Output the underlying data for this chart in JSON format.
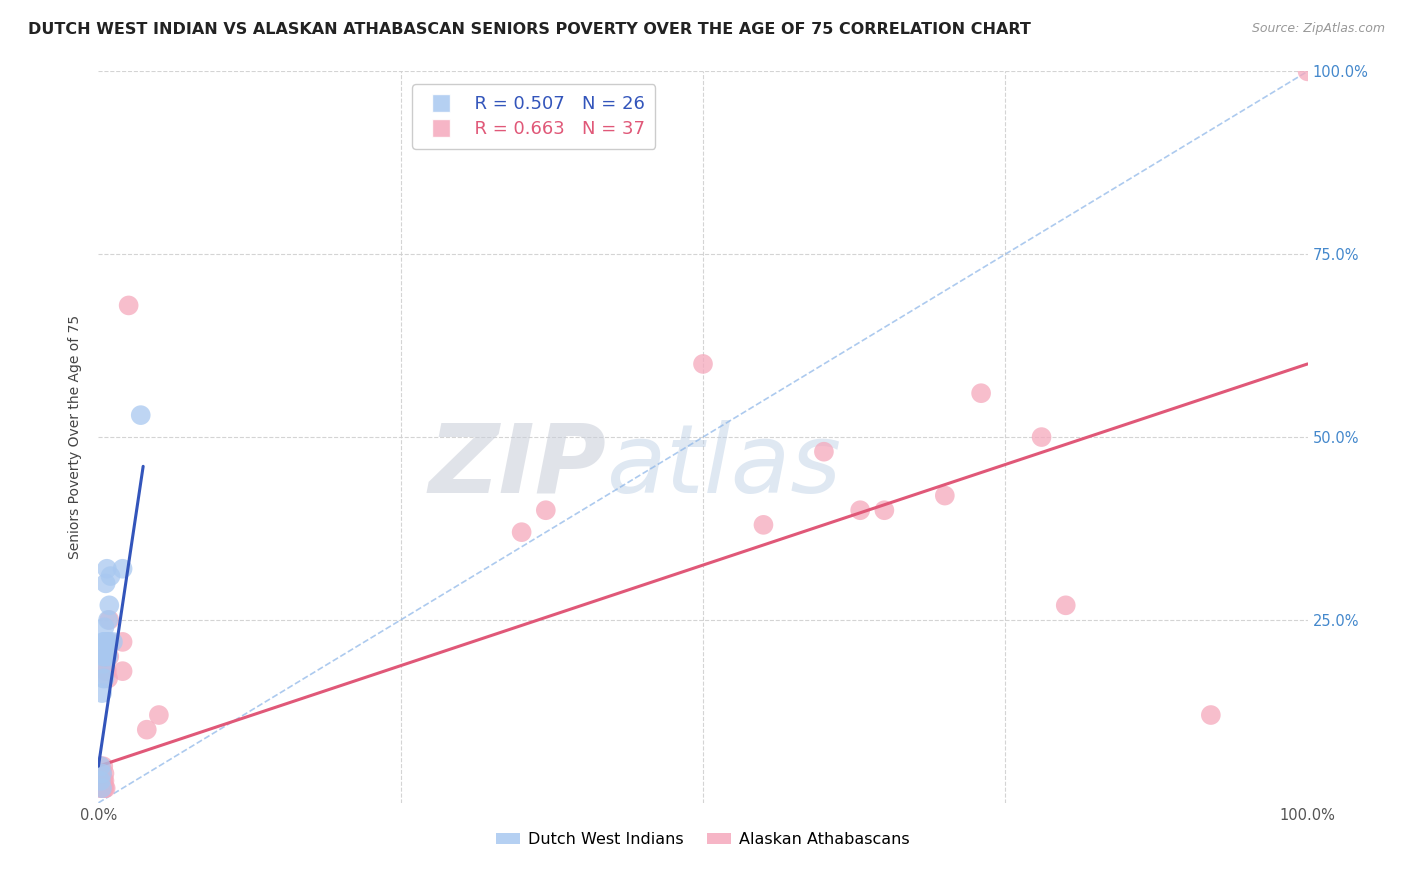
{
  "title": "DUTCH WEST INDIAN VS ALASKAN ATHABASCAN SENIORS POVERTY OVER THE AGE OF 75 CORRELATION CHART",
  "source": "Source: ZipAtlas.com",
  "ylabel": "Seniors Poverty Over the Age of 75",
  "xlim": [
    0,
    1
  ],
  "ylim": [
    0,
    1
  ],
  "blue_R": "0.507",
  "blue_N": "26",
  "pink_R": "0.663",
  "pink_N": "37",
  "blue_color": "#a8c8f0",
  "pink_color": "#f5a8bc",
  "blue_line_color": "#3355bb",
  "pink_line_color": "#e05878",
  "legend_label_blue": "Dutch West Indians",
  "legend_label_pink": "Alaskan Athabascans",
  "blue_points_x": [
    0.002,
    0.002,
    0.003,
    0.003,
    0.003,
    0.004,
    0.004,
    0.004,
    0.004,
    0.005,
    0.005,
    0.005,
    0.005,
    0.006,
    0.006,
    0.006,
    0.007,
    0.007,
    0.008,
    0.008,
    0.009,
    0.009,
    0.01,
    0.012,
    0.02,
    0.035
  ],
  "blue_points_y": [
    0.03,
    0.05,
    0.02,
    0.04,
    0.15,
    0.17,
    0.19,
    0.2,
    0.22,
    0.17,
    0.2,
    0.22,
    0.24,
    0.2,
    0.22,
    0.3,
    0.22,
    0.32,
    0.2,
    0.25,
    0.22,
    0.27,
    0.31,
    0.22,
    0.32,
    0.53
  ],
  "pink_points_x": [
    0.002,
    0.002,
    0.002,
    0.003,
    0.003,
    0.004,
    0.004,
    0.004,
    0.005,
    0.005,
    0.005,
    0.006,
    0.006,
    0.006,
    0.007,
    0.008,
    0.008,
    0.009,
    0.009,
    0.02,
    0.02,
    0.025,
    0.04,
    0.05,
    0.35,
    0.37,
    0.5,
    0.55,
    0.6,
    0.63,
    0.65,
    0.7,
    0.73,
    0.78,
    0.8,
    0.92,
    1.0
  ],
  "pink_points_y": [
    0.02,
    0.03,
    0.05,
    0.02,
    0.04,
    0.02,
    0.03,
    0.05,
    0.02,
    0.03,
    0.04,
    0.02,
    0.18,
    0.2,
    0.18,
    0.17,
    0.22,
    0.2,
    0.25,
    0.18,
    0.22,
    0.68,
    0.1,
    0.12,
    0.37,
    0.4,
    0.6,
    0.38,
    0.48,
    0.4,
    0.4,
    0.42,
    0.56,
    0.5,
    0.27,
    0.12,
    1.0
  ],
  "blue_line_x": [
    0.0,
    0.037
  ],
  "blue_line_y": [
    0.05,
    0.46
  ],
  "diag_line_x": [
    0.0,
    1.0
  ],
  "diag_line_y": [
    0.0,
    1.0
  ],
  "pink_line_x": [
    0.0,
    1.0
  ],
  "pink_line_y": [
    0.05,
    0.6
  ],
  "watermark_zip": "ZIP",
  "watermark_atlas": "atlas",
  "bg_color": "#ffffff",
  "grid_color": "#d0d0d0",
  "title_fontsize": 11.5,
  "label_fontsize": 10,
  "tick_fontsize": 10.5
}
